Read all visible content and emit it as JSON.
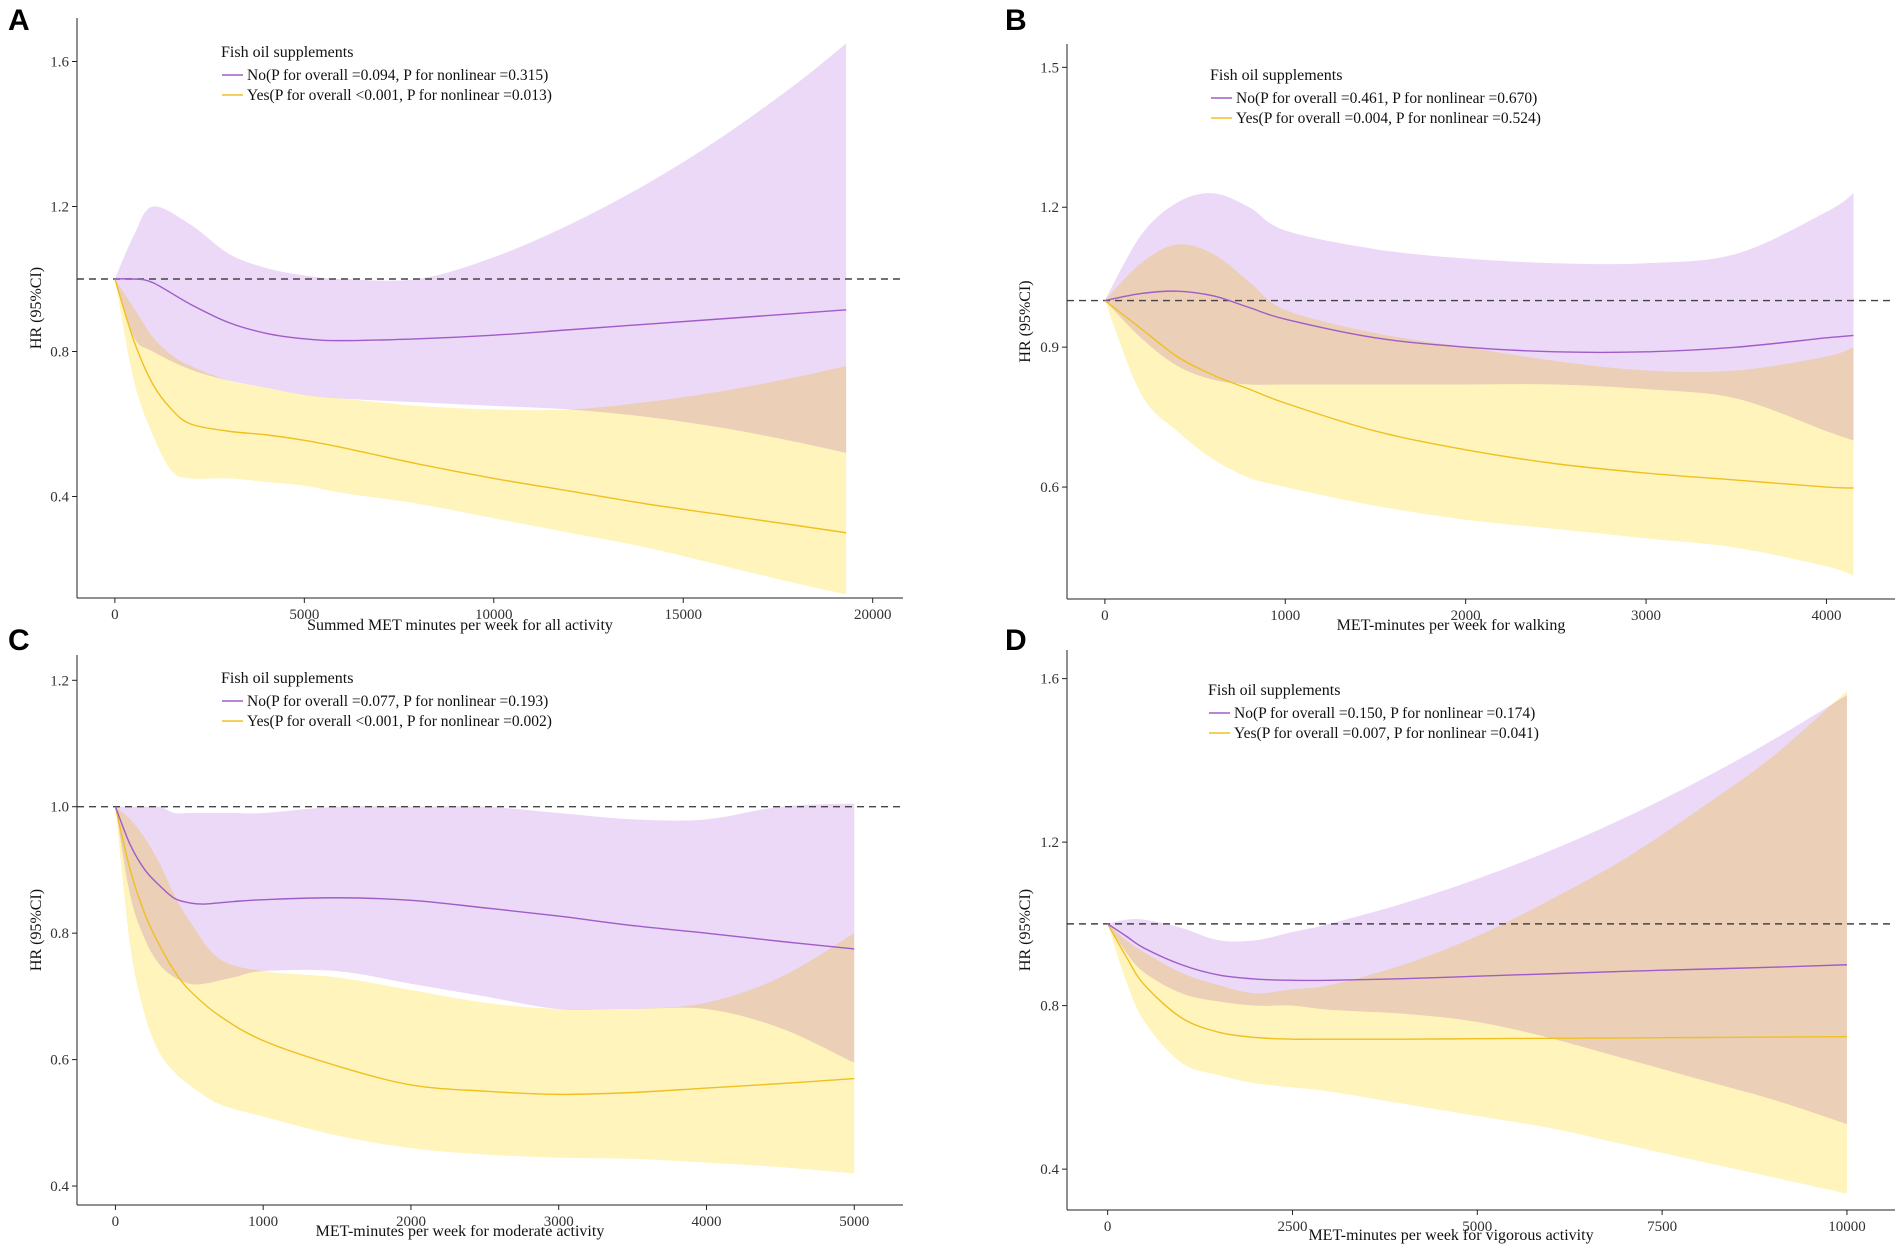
{
  "figure": {
    "colors": {
      "no_line": "#a05cc8",
      "yes_line": "#f0c020",
      "no_band": "#e8d2f6",
      "yes_band": "#fff3b8",
      "reference": "#444444"
    },
    "legend_title": "Fish oil supplements",
    "ylabel": "HR (95%CI)"
  },
  "chart_data": [
    {
      "panel": "A",
      "type": "line",
      "xlabel": "Summed MET minutes per week for all activity",
      "ylabel": "HR (95%CI)",
      "xlim": [
        -1000,
        20800
      ],
      "ylim": [
        0.12,
        1.72
      ],
      "xticks": [
        0,
        5000,
        10000,
        15000,
        20000
      ],
      "xtick_labels": [
        "0",
        "5000",
        "10000",
        "15000",
        "20000"
      ],
      "yticks": [
        0.4,
        0.8,
        1.2,
        1.6
      ],
      "ytick_labels": [
        "0.4",
        "0.8",
        "1.2",
        "1.6"
      ],
      "reference_line": 1.0,
      "legend_title": "Fish oil supplements",
      "legend_labels": [
        "No(P for overall =0.094, P for nonlinear =0.315)",
        "Yes(P for overall <0.001, P for nonlinear =0.013)"
      ],
      "series": [
        {
          "name": "No",
          "x": [
            0,
            500,
            1000,
            2000,
            3000,
            4000,
            5000,
            6000,
            8000,
            10000,
            12000,
            14000,
            16000,
            18000,
            19300
          ],
          "y": [
            1.0,
            1.0,
            0.99,
            0.93,
            0.88,
            0.85,
            0.835,
            0.83,
            0.835,
            0.845,
            0.86,
            0.875,
            0.89,
            0.905,
            0.915
          ],
          "lower": [
            1.0,
            0.84,
            0.8,
            0.75,
            0.72,
            0.7,
            0.68,
            0.67,
            0.66,
            0.65,
            0.64,
            0.62,
            0.59,
            0.55,
            0.52
          ],
          "upper": [
            1.0,
            1.12,
            1.2,
            1.15,
            1.07,
            1.03,
            1.01,
            1.0,
            1.0,
            1.06,
            1.15,
            1.26,
            1.39,
            1.54,
            1.65
          ]
        },
        {
          "name": "Yes",
          "x": [
            0,
            500,
            1000,
            1500,
            2000,
            3000,
            4000,
            5000,
            6000,
            8000,
            10000,
            12000,
            14000,
            16000,
            18000,
            19300
          ],
          "y": [
            1.0,
            0.83,
            0.71,
            0.64,
            0.6,
            0.58,
            0.57,
            0.555,
            0.535,
            0.49,
            0.45,
            0.415,
            0.38,
            0.35,
            0.32,
            0.3
          ],
          "lower": [
            1.0,
            0.72,
            0.57,
            0.47,
            0.45,
            0.45,
            0.44,
            0.43,
            0.41,
            0.38,
            0.34,
            0.3,
            0.26,
            0.21,
            0.16,
            0.13
          ],
          "upper": [
            1.0,
            0.92,
            0.84,
            0.79,
            0.76,
            0.72,
            0.7,
            0.68,
            0.67,
            0.65,
            0.64,
            0.64,
            0.66,
            0.69,
            0.73,
            0.76
          ]
        }
      ]
    },
    {
      "panel": "B",
      "type": "line",
      "xlabel": "MET-minutes per week for walking",
      "ylabel": "HR (95%CI)",
      "xlim": [
        -210,
        4380
      ],
      "ylim": [
        0.36,
        1.55
      ],
      "xticks": [
        0,
        1000,
        2000,
        3000,
        4000
      ],
      "xtick_labels": [
        "0",
        "1000",
        "2000",
        "3000",
        "4000"
      ],
      "yticks": [
        0.6,
        0.9,
        1.2,
        1.5
      ],
      "ytick_labels": [
        "0.6",
        "0.9",
        "1.2",
        "1.5"
      ],
      "reference_line": 1.0,
      "legend_title": "Fish oil supplements",
      "legend_labels": [
        "No(P for overall =0.461, P for nonlinear =0.670)",
        "Yes(P for overall =0.004, P for nonlinear =0.524)"
      ],
      "series": [
        {
          "name": "No",
          "x": [
            0,
            200,
            400,
            600,
            800,
            1000,
            1500,
            2000,
            2500,
            3000,
            3500,
            4000,
            4150
          ],
          "y": [
            1.0,
            1.015,
            1.02,
            1.01,
            0.985,
            0.96,
            0.92,
            0.9,
            0.89,
            0.89,
            0.9,
            0.92,
            0.925
          ],
          "lower": [
            1.0,
            0.92,
            0.86,
            0.83,
            0.82,
            0.82,
            0.82,
            0.82,
            0.82,
            0.81,
            0.79,
            0.72,
            0.7
          ],
          "upper": [
            1.0,
            1.14,
            1.21,
            1.23,
            1.2,
            1.15,
            1.11,
            1.09,
            1.08,
            1.08,
            1.1,
            1.19,
            1.23
          ]
        },
        {
          "name": "Yes",
          "x": [
            0,
            200,
            400,
            600,
            800,
            1000,
            1500,
            2000,
            2500,
            3000,
            3500,
            4000,
            4150
          ],
          "y": [
            1.0,
            0.94,
            0.88,
            0.84,
            0.81,
            0.78,
            0.72,
            0.68,
            0.65,
            0.63,
            0.615,
            0.6,
            0.598
          ],
          "lower": [
            1.0,
            0.8,
            0.72,
            0.66,
            0.62,
            0.6,
            0.56,
            0.53,
            0.51,
            0.49,
            0.47,
            0.43,
            0.41
          ],
          "upper": [
            1.0,
            1.08,
            1.12,
            1.1,
            1.04,
            0.98,
            0.93,
            0.9,
            0.87,
            0.85,
            0.85,
            0.88,
            0.9
          ]
        }
      ]
    },
    {
      "panel": "C",
      "type": "line",
      "xlabel": "MET-minutes per week for moderate activity",
      "ylabel": "HR (95%CI)",
      "xlim": [
        -260,
        5330
      ],
      "ylim": [
        0.37,
        1.24
      ],
      "xticks": [
        0,
        1000,
        2000,
        3000,
        4000,
        5000
      ],
      "xtick_labels": [
        "0",
        "1000",
        "2000",
        "3000",
        "4000",
        "5000"
      ],
      "yticks": [
        0.4,
        0.6,
        0.8,
        1.0,
        1.2
      ],
      "ytick_labels": [
        "0.4",
        "0.6",
        "0.8",
        "1.0",
        "1.2"
      ],
      "reference_line": 1.0,
      "legend_title": "Fish oil supplements",
      "legend_labels": [
        "No(P for overall =0.077, P for nonlinear =0.193)",
        "Yes(P for overall <0.001, P for nonlinear =0.002)"
      ],
      "series": [
        {
          "name": "No",
          "x": [
            0,
            100,
            200,
            300,
            400,
            500,
            600,
            800,
            1000,
            1500,
            2000,
            2500,
            3000,
            3500,
            4000,
            4500,
            5000
          ],
          "y": [
            1.0,
            0.94,
            0.9,
            0.875,
            0.855,
            0.848,
            0.846,
            0.85,
            0.853,
            0.856,
            0.852,
            0.84,
            0.827,
            0.812,
            0.8,
            0.787,
            0.775
          ],
          "lower": [
            1.0,
            0.86,
            0.79,
            0.75,
            0.73,
            0.72,
            0.72,
            0.73,
            0.74,
            0.74,
            0.72,
            0.7,
            0.68,
            0.68,
            0.68,
            0.65,
            0.595
          ],
          "upper": [
            1.0,
            1.0,
            1.0,
            1.0,
            0.99,
            0.99,
            0.99,
            0.99,
            0.99,
            1.0,
            1.0,
            1.0,
            0.99,
            0.98,
            0.98,
            1.0,
            1.005
          ]
        },
        {
          "name": "Yes",
          "x": [
            0,
            100,
            200,
            300,
            400,
            500,
            700,
            1000,
            1500,
            2000,
            2500,
            3000,
            3500,
            4000,
            4500,
            5000
          ],
          "y": [
            1.0,
            0.9,
            0.83,
            0.78,
            0.74,
            0.71,
            0.67,
            0.63,
            0.59,
            0.56,
            0.55,
            0.545,
            0.548,
            0.555,
            0.562,
            0.57
          ],
          "lower": [
            1.0,
            0.78,
            0.67,
            0.61,
            0.58,
            0.56,
            0.53,
            0.51,
            0.48,
            0.46,
            0.45,
            0.445,
            0.443,
            0.437,
            0.43,
            0.42
          ],
          "upper": [
            1.0,
            0.98,
            0.95,
            0.91,
            0.86,
            0.82,
            0.76,
            0.74,
            0.73,
            0.71,
            0.69,
            0.68,
            0.68,
            0.69,
            0.73,
            0.8
          ]
        }
      ]
    },
    {
      "panel": "D",
      "type": "line",
      "xlabel": "MET-minutes per week for vigorous activity",
      "ylabel": "HR (95%CI)",
      "xlim": [
        -550,
        10650
      ],
      "ylim": [
        0.3,
        1.67
      ],
      "xticks": [
        0,
        2500,
        5000,
        7500,
        10000
      ],
      "xtick_labels": [
        "0",
        "2500",
        "5000",
        "7500",
        "10000"
      ],
      "yticks": [
        0.4,
        0.8,
        1.2,
        1.6
      ],
      "ytick_labels": [
        "0.4",
        "0.8",
        "1.2",
        "1.6"
      ],
      "reference_line": 1.0,
      "legend_title": "Fish oil supplements",
      "legend_labels": [
        "No(P for overall =0.150, P for nonlinear =0.174)",
        "Yes(P for overall =0.007, P for nonlinear =0.041)"
      ],
      "series": [
        {
          "name": "No",
          "x": [
            0,
            250,
            500,
            1000,
            1500,
            2000,
            2500,
            3000,
            4000,
            5000,
            6000,
            7000,
            8000,
            9000,
            10000
          ],
          "y": [
            1.0,
            0.97,
            0.94,
            0.9,
            0.875,
            0.865,
            0.862,
            0.862,
            0.866,
            0.872,
            0.878,
            0.884,
            0.889,
            0.894,
            0.9
          ],
          "lower": [
            1.0,
            0.93,
            0.88,
            0.83,
            0.81,
            0.8,
            0.8,
            0.79,
            0.78,
            0.76,
            0.72,
            0.67,
            0.62,
            0.57,
            0.51
          ],
          "upper": [
            1.0,
            1.01,
            1.01,
            0.99,
            0.96,
            0.96,
            0.98,
            1.0,
            1.05,
            1.11,
            1.18,
            1.26,
            1.35,
            1.45,
            1.56
          ]
        },
        {
          "name": "Yes",
          "x": [
            0,
            250,
            500,
            1000,
            1500,
            2000,
            2500,
            3000,
            4000,
            5000,
            6000,
            7000,
            8000,
            9000,
            10000
          ],
          "y": [
            1.0,
            0.92,
            0.85,
            0.77,
            0.735,
            0.722,
            0.718,
            0.718,
            0.718,
            0.719,
            0.72,
            0.721,
            0.722,
            0.723,
            0.724
          ],
          "lower": [
            1.0,
            0.86,
            0.76,
            0.66,
            0.63,
            0.61,
            0.6,
            0.59,
            0.56,
            0.53,
            0.5,
            0.46,
            0.42,
            0.38,
            0.34
          ],
          "upper": [
            1.0,
            0.96,
            0.93,
            0.88,
            0.85,
            0.83,
            0.84,
            0.85,
            0.9,
            0.97,
            1.06,
            1.16,
            1.28,
            1.41,
            1.57
          ]
        }
      ]
    }
  ]
}
